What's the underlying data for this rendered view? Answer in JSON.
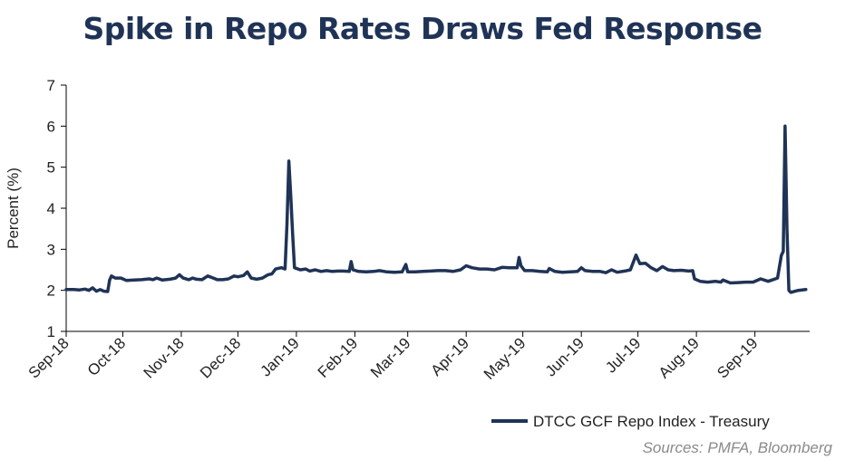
{
  "chart_data": {
    "type": "line",
    "title": "Spike in Repo Rates Draws Fed Response",
    "ylabel": "Percent (%)",
    "xlabel": "",
    "ylim": [
      1,
      7
    ],
    "yticks": [
      1,
      2,
      3,
      4,
      5,
      6,
      7
    ],
    "xrange": [
      "2018-09-01",
      "2019-09-30"
    ],
    "xticks": [
      {
        "date": "2018-09-01",
        "label": "Sep-18"
      },
      {
        "date": "2018-10-01",
        "label": "Oct-18"
      },
      {
        "date": "2018-11-01",
        "label": "Nov-18"
      },
      {
        "date": "2018-12-01",
        "label": "Dec-18"
      },
      {
        "date": "2019-01-01",
        "label": "Jan-19"
      },
      {
        "date": "2019-02-01",
        "label": "Feb-19"
      },
      {
        "date": "2019-03-01",
        "label": "Mar-19"
      },
      {
        "date": "2019-04-01",
        "label": "Apr-19"
      },
      {
        "date": "2019-05-01",
        "label": "May-19"
      },
      {
        "date": "2019-06-01",
        "label": "Jun-19"
      },
      {
        "date": "2019-07-01",
        "label": "Jul-19"
      },
      {
        "date": "2019-08-01",
        "label": "Aug-19"
      },
      {
        "date": "2019-09-01",
        "label": "Sep-19"
      }
    ],
    "grid": false,
    "legend_position": "bottom-right",
    "series": [
      {
        "name": "DTCC GCF Repo Index - Treasury",
        "color": "#1f3356",
        "points": [
          [
            "2018-09-01",
            2.02
          ],
          [
            "2018-09-05",
            2.02
          ],
          [
            "2018-09-08",
            2.01
          ],
          [
            "2018-09-11",
            2.03
          ],
          [
            "2018-09-13",
            2.0
          ],
          [
            "2018-09-15",
            2.06
          ],
          [
            "2018-09-17",
            1.98
          ],
          [
            "2018-09-19",
            2.02
          ],
          [
            "2018-09-21",
            1.98
          ],
          [
            "2018-09-23",
            1.97
          ],
          [
            "2018-09-24",
            2.25
          ],
          [
            "2018-09-25",
            2.35
          ],
          [
            "2018-09-27",
            2.3
          ],
          [
            "2018-09-30",
            2.3
          ],
          [
            "2018-10-03",
            2.24
          ],
          [
            "2018-10-07",
            2.25
          ],
          [
            "2018-10-11",
            2.26
          ],
          [
            "2018-10-15",
            2.28
          ],
          [
            "2018-10-17",
            2.26
          ],
          [
            "2018-10-19",
            2.3
          ],
          [
            "2018-10-22",
            2.25
          ],
          [
            "2018-10-26",
            2.27
          ],
          [
            "2018-10-29",
            2.3
          ],
          [
            "2018-10-31",
            2.38
          ],
          [
            "2018-11-02",
            2.3
          ],
          [
            "2018-11-05",
            2.26
          ],
          [
            "2018-11-07",
            2.3
          ],
          [
            "2018-11-09",
            2.27
          ],
          [
            "2018-11-12",
            2.26
          ],
          [
            "2018-11-15",
            2.35
          ],
          [
            "2018-11-18",
            2.3
          ],
          [
            "2018-11-20",
            2.26
          ],
          [
            "2018-11-23",
            2.26
          ],
          [
            "2018-11-26",
            2.28
          ],
          [
            "2018-11-29",
            2.35
          ],
          [
            "2018-12-01",
            2.33
          ],
          [
            "2018-12-04",
            2.36
          ],
          [
            "2018-12-06",
            2.45
          ],
          [
            "2018-12-08",
            2.3
          ],
          [
            "2018-12-11",
            2.27
          ],
          [
            "2018-12-14",
            2.3
          ],
          [
            "2018-12-17",
            2.38
          ],
          [
            "2018-12-19",
            2.4
          ],
          [
            "2018-12-21",
            2.52
          ],
          [
            "2018-12-24",
            2.55
          ],
          [
            "2018-12-26",
            2.52
          ],
          [
            "2018-12-27",
            3.6
          ],
          [
            "2018-12-28",
            5.15
          ],
          [
            "2018-12-29",
            4.3
          ],
          [
            "2018-12-30",
            3.4
          ],
          [
            "2018-12-31",
            2.55
          ],
          [
            "2019-01-03",
            2.5
          ],
          [
            "2019-01-06",
            2.52
          ],
          [
            "2019-01-08",
            2.47
          ],
          [
            "2019-01-11",
            2.5
          ],
          [
            "2019-01-14",
            2.46
          ],
          [
            "2019-01-17",
            2.48
          ],
          [
            "2019-01-20",
            2.46
          ],
          [
            "2019-01-23",
            2.47
          ],
          [
            "2019-01-26",
            2.47
          ],
          [
            "2019-01-29",
            2.46
          ],
          [
            "2019-01-30",
            2.7
          ],
          [
            "2019-01-31",
            2.5
          ],
          [
            "2019-02-03",
            2.46
          ],
          [
            "2019-02-07",
            2.45
          ],
          [
            "2019-02-11",
            2.46
          ],
          [
            "2019-02-14",
            2.48
          ],
          [
            "2019-02-18",
            2.45
          ],
          [
            "2019-02-22",
            2.44
          ],
          [
            "2019-02-26",
            2.45
          ],
          [
            "2019-02-28",
            2.63
          ],
          [
            "2019-03-01",
            2.45
          ],
          [
            "2019-03-05",
            2.45
          ],
          [
            "2019-03-09",
            2.46
          ],
          [
            "2019-03-13",
            2.47
          ],
          [
            "2019-03-17",
            2.48
          ],
          [
            "2019-03-21",
            2.48
          ],
          [
            "2019-03-25",
            2.46
          ],
          [
            "2019-03-29",
            2.5
          ],
          [
            "2019-04-01",
            2.6
          ],
          [
            "2019-04-04",
            2.55
          ],
          [
            "2019-04-08",
            2.52
          ],
          [
            "2019-04-12",
            2.52
          ],
          [
            "2019-04-16",
            2.5
          ],
          [
            "2019-04-20",
            2.56
          ],
          [
            "2019-04-24",
            2.55
          ],
          [
            "2019-04-28",
            2.55
          ],
          [
            "2019-04-29",
            2.8
          ],
          [
            "2019-04-30",
            2.6
          ],
          [
            "2019-05-02",
            2.48
          ],
          [
            "2019-05-06",
            2.48
          ],
          [
            "2019-05-10",
            2.46
          ],
          [
            "2019-05-14",
            2.45
          ],
          [
            "2019-05-15",
            2.53
          ],
          [
            "2019-05-18",
            2.46
          ],
          [
            "2019-05-22",
            2.44
          ],
          [
            "2019-05-26",
            2.45
          ],
          [
            "2019-05-30",
            2.46
          ],
          [
            "2019-06-01",
            2.55
          ],
          [
            "2019-06-03",
            2.48
          ],
          [
            "2019-06-07",
            2.46
          ],
          [
            "2019-06-11",
            2.46
          ],
          [
            "2019-06-14",
            2.43
          ],
          [
            "2019-06-17",
            2.5
          ],
          [
            "2019-06-20",
            2.44
          ],
          [
            "2019-06-24",
            2.47
          ],
          [
            "2019-06-27",
            2.5
          ],
          [
            "2019-06-30",
            2.86
          ],
          [
            "2019-07-02",
            2.65
          ],
          [
            "2019-07-05",
            2.66
          ],
          [
            "2019-07-08",
            2.55
          ],
          [
            "2019-07-11",
            2.48
          ],
          [
            "2019-07-14",
            2.58
          ],
          [
            "2019-07-17",
            2.5
          ],
          [
            "2019-07-20",
            2.48
          ],
          [
            "2019-07-24",
            2.49
          ],
          [
            "2019-07-28",
            2.47
          ],
          [
            "2019-07-30",
            2.48
          ],
          [
            "2019-07-31",
            2.28
          ],
          [
            "2019-08-03",
            2.22
          ],
          [
            "2019-08-07",
            2.2
          ],
          [
            "2019-08-11",
            2.22
          ],
          [
            "2019-08-14",
            2.2
          ],
          [
            "2019-08-15",
            2.25
          ],
          [
            "2019-08-19",
            2.18
          ],
          [
            "2019-08-23",
            2.19
          ],
          [
            "2019-08-27",
            2.2
          ],
          [
            "2019-08-31",
            2.2
          ],
          [
            "2019-09-04",
            2.28
          ],
          [
            "2019-09-08",
            2.22
          ],
          [
            "2019-09-10",
            2.25
          ],
          [
            "2019-09-13",
            2.3
          ],
          [
            "2019-09-15",
            2.85
          ],
          [
            "2019-09-16",
            2.95
          ],
          [
            "2019-09-17",
            6.0
          ],
          [
            "2019-09-18",
            3.5
          ],
          [
            "2019-09-19",
            2.0
          ],
          [
            "2019-09-20",
            1.95
          ],
          [
            "2019-09-24",
            2.0
          ],
          [
            "2019-09-28",
            2.02
          ]
        ]
      }
    ]
  },
  "source_note": "Sources: PMFA, Bloomberg"
}
